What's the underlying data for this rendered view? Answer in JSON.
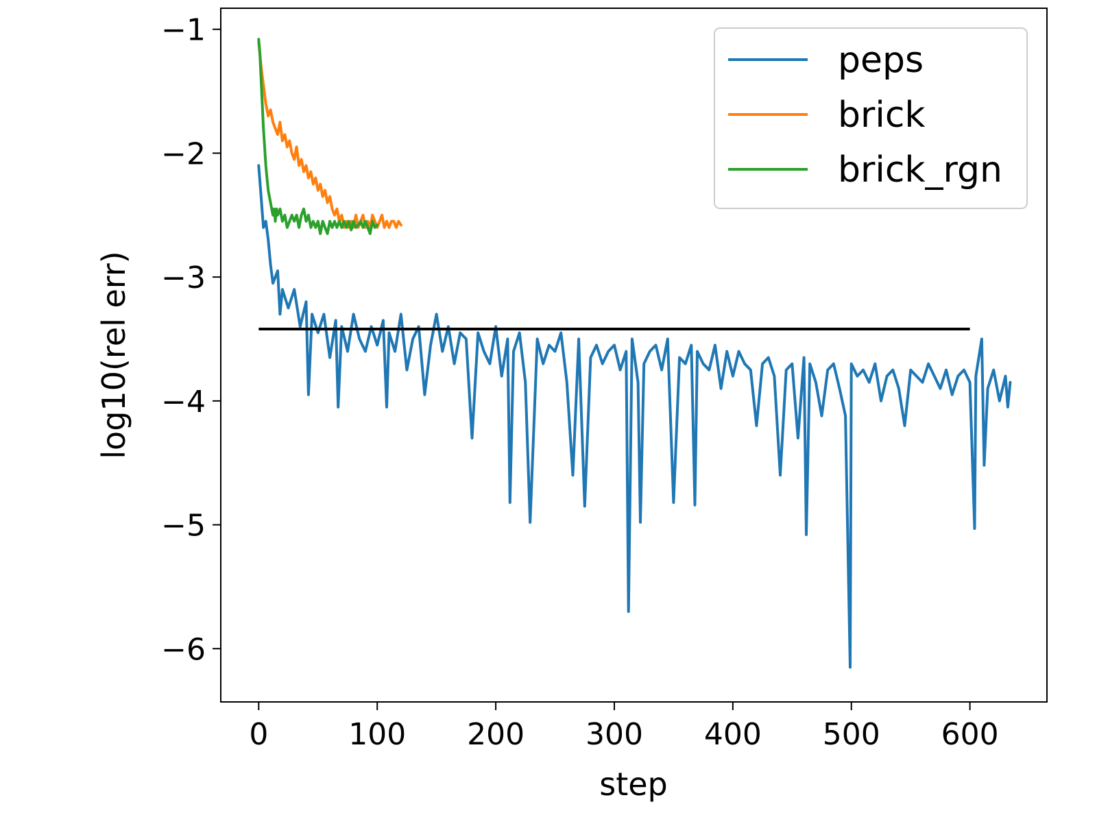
{
  "chart_data": {
    "type": "line",
    "xlabel": "step",
    "ylabel": "log10(rel err)",
    "xlim": [
      -32,
      665
    ],
    "ylim": [
      -6.43,
      -0.83
    ],
    "xticks": [
      0,
      100,
      200,
      300,
      400,
      500,
      600
    ],
    "yticks": [
      -1,
      -2,
      -3,
      -4,
      -5,
      -6
    ],
    "xtick_labels": [
      "0",
      "100",
      "200",
      "300",
      "400",
      "500",
      "600"
    ],
    "ytick_labels": [
      "−1",
      "−2",
      "−3",
      "−4",
      "−5",
      "−6"
    ],
    "grid": false,
    "legend": {
      "placement": "top-right",
      "entries": [
        "peps",
        "brick",
        "brick_rgn"
      ]
    },
    "series": [
      {
        "name": "peps",
        "color": "#1f77b4",
        "x": [
          0,
          2,
          4,
          6,
          8,
          10,
          12,
          14,
          16,
          18,
          20,
          25,
          30,
          35,
          40,
          42,
          45,
          50,
          55,
          60,
          65,
          67,
          70,
          75,
          80,
          85,
          90,
          95,
          100,
          105,
          108,
          110,
          115,
          120,
          125,
          130,
          135,
          140,
          145,
          150,
          155,
          160,
          165,
          170,
          175,
          180,
          185,
          190,
          195,
          200,
          205,
          210,
          212,
          215,
          220,
          225,
          229,
          235,
          240,
          245,
          250,
          255,
          260,
          265,
          270,
          275,
          280,
          285,
          290,
          295,
          300,
          305,
          310,
          312,
          315,
          320,
          322,
          325,
          330,
          335,
          340,
          345,
          350,
          355,
          360,
          365,
          368,
          370,
          375,
          380,
          385,
          390,
          395,
          400,
          405,
          410,
          415,
          420,
          425,
          430,
          435,
          440,
          445,
          450,
          455,
          460,
          462,
          465,
          470,
          475,
          480,
          485,
          490,
          495,
          499,
          500,
          505,
          510,
          515,
          520,
          525,
          530,
          535,
          540,
          545,
          550,
          555,
          560,
          565,
          570,
          575,
          580,
          585,
          590,
          595,
          600,
          604,
          605,
          610,
          612,
          615,
          620,
          625,
          630,
          632,
          634
        ],
        "values": [
          -2.1,
          -2.35,
          -2.6,
          -2.55,
          -2.7,
          -2.9,
          -3.05,
          -3.0,
          -2.95,
          -3.3,
          -3.1,
          -3.25,
          -3.1,
          -3.4,
          -3.2,
          -3.95,
          -3.3,
          -3.45,
          -3.3,
          -3.65,
          -3.35,
          -4.05,
          -3.4,
          -3.6,
          -3.3,
          -3.5,
          -3.6,
          -3.4,
          -3.55,
          -3.35,
          -4.05,
          -3.45,
          -3.6,
          -3.3,
          -3.75,
          -3.5,
          -3.4,
          -3.95,
          -3.55,
          -3.3,
          -3.6,
          -3.4,
          -3.7,
          -3.45,
          -3.5,
          -4.3,
          -3.45,
          -3.6,
          -3.7,
          -3.4,
          -3.8,
          -3.5,
          -4.82,
          -3.6,
          -3.45,
          -3.85,
          -4.98,
          -3.5,
          -3.7,
          -3.55,
          -3.6,
          -3.45,
          -3.85,
          -4.6,
          -3.5,
          -4.85,
          -3.65,
          -3.55,
          -3.7,
          -3.6,
          -3.55,
          -3.75,
          -3.6,
          -5.7,
          -3.5,
          -3.85,
          -4.98,
          -3.7,
          -3.6,
          -3.55,
          -3.75,
          -3.5,
          -4.82,
          -3.65,
          -3.7,
          -3.55,
          -4.84,
          -3.6,
          -3.7,
          -3.75,
          -3.55,
          -3.9,
          -3.6,
          -3.8,
          -3.6,
          -3.7,
          -3.75,
          -4.2,
          -3.7,
          -3.65,
          -3.8,
          -4.6,
          -3.75,
          -3.7,
          -4.3,
          -3.65,
          -5.08,
          -3.7,
          -3.85,
          -4.12,
          -3.75,
          -3.7,
          -3.9,
          -4.12,
          -6.15,
          -3.7,
          -3.8,
          -3.75,
          -3.85,
          -3.7,
          -4.0,
          -3.8,
          -3.75,
          -3.9,
          -4.2,
          -3.75,
          -3.8,
          -3.85,
          -3.7,
          -3.8,
          -3.9,
          -3.75,
          -3.95,
          -3.8,
          -3.75,
          -3.85,
          -5.03,
          -3.8,
          -3.5,
          -4.52,
          -3.9,
          -3.75,
          -4.0,
          -3.8,
          -4.05,
          -3.85
        ]
      },
      {
        "name": "brick",
        "color": "#ff7f0e",
        "x": [
          0,
          2,
          4,
          6,
          8,
          10,
          12,
          14,
          16,
          18,
          20,
          22,
          24,
          26,
          28,
          30,
          32,
          34,
          36,
          38,
          40,
          42,
          44,
          46,
          48,
          50,
          52,
          54,
          56,
          58,
          60,
          62,
          64,
          66,
          68,
          70,
          72,
          74,
          76,
          78,
          80,
          82,
          84,
          86,
          88,
          90,
          92,
          94,
          96,
          98,
          100,
          102,
          104,
          106,
          108,
          110,
          112,
          114,
          116,
          118,
          120
        ],
        "values": [
          -1.1,
          -1.3,
          -1.45,
          -1.6,
          -1.7,
          -1.65,
          -1.75,
          -1.8,
          -1.85,
          -1.75,
          -1.9,
          -1.85,
          -1.95,
          -1.9,
          -2.0,
          -2.05,
          -1.95,
          -2.1,
          -2.05,
          -2.15,
          -2.1,
          -2.2,
          -2.15,
          -2.25,
          -2.2,
          -2.3,
          -2.25,
          -2.35,
          -2.3,
          -2.4,
          -2.35,
          -2.45,
          -2.5,
          -2.45,
          -2.55,
          -2.5,
          -2.6,
          -2.55,
          -2.6,
          -2.55,
          -2.6,
          -2.5,
          -2.6,
          -2.55,
          -2.5,
          -2.6,
          -2.55,
          -2.6,
          -2.5,
          -2.55,
          -2.6,
          -2.55,
          -2.5,
          -2.6,
          -2.55,
          -2.6,
          -2.55,
          -2.55,
          -2.6,
          -2.55,
          -2.58
        ]
      },
      {
        "name": "brick_rgn",
        "color": "#2ca02c",
        "x": [
          0,
          1,
          2,
          3,
          4,
          5,
          6,
          7,
          8,
          9,
          10,
          11,
          12,
          13,
          14,
          15,
          16,
          18,
          20,
          22,
          24,
          26,
          28,
          30,
          32,
          34,
          36,
          38,
          40,
          42,
          44,
          46,
          48,
          50,
          52,
          54,
          56,
          58,
          60,
          62,
          64,
          66,
          68,
          70,
          72,
          74,
          76,
          78,
          80,
          82,
          84,
          86,
          88,
          90,
          92,
          94,
          96,
          98,
          100
        ],
        "values": [
          -1.08,
          -1.2,
          -1.4,
          -1.6,
          -1.8,
          -1.95,
          -2.1,
          -2.2,
          -2.3,
          -2.35,
          -2.4,
          -2.45,
          -2.5,
          -2.45,
          -2.55,
          -2.45,
          -2.5,
          -2.45,
          -2.55,
          -2.5,
          -2.6,
          -2.55,
          -2.5,
          -2.55,
          -2.5,
          -2.6,
          -2.5,
          -2.45,
          -2.55,
          -2.5,
          -2.6,
          -2.55,
          -2.6,
          -2.55,
          -2.65,
          -2.55,
          -2.6,
          -2.65,
          -2.55,
          -2.6,
          -2.55,
          -2.6,
          -2.55,
          -2.6,
          -2.55,
          -2.6,
          -2.55,
          -2.62,
          -2.55,
          -2.6,
          -2.58,
          -2.55,
          -2.6,
          -2.55,
          -2.6,
          -2.65,
          -2.55,
          -2.6,
          -2.58
        ]
      }
    ],
    "reference_line": {
      "color": "#000000",
      "x": [
        0,
        600
      ],
      "y": [
        -3.42,
        -3.42
      ]
    }
  }
}
